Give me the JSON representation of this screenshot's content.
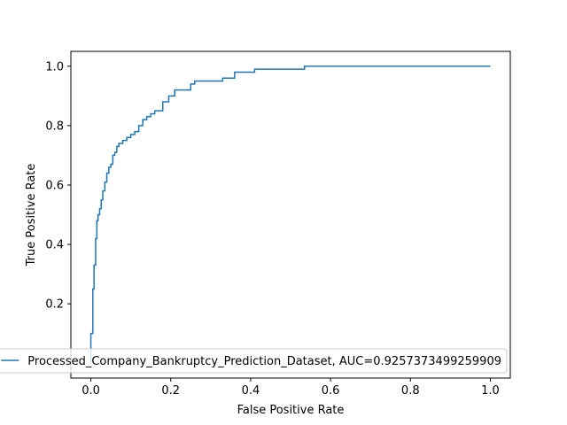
{
  "chart_data": {
    "type": "line",
    "title": "",
    "xlabel": "False Positive Rate",
    "ylabel": "True Positive Rate",
    "xlim": [
      -0.05,
      1.05
    ],
    "ylim": [
      -0.05,
      1.05
    ],
    "x_ticks": [
      "0.0",
      "0.2",
      "0.4",
      "0.6",
      "0.8",
      "1.0"
    ],
    "y_ticks": [
      "0.2",
      "0.4",
      "0.6",
      "0.8",
      "1.0"
    ],
    "grid": false,
    "legend_position": "lower-right",
    "series": [
      {
        "name": "Processed_Company_Bankruptcy_Prediction_Dataset, AUC=0.9257373499259909",
        "color": "#1f77b4",
        "x": [
          0.0,
          0.0,
          0.005,
          0.005,
          0.008,
          0.008,
          0.012,
          0.012,
          0.015,
          0.015,
          0.018,
          0.018,
          0.022,
          0.022,
          0.026,
          0.026,
          0.03,
          0.03,
          0.035,
          0.035,
          0.04,
          0.04,
          0.045,
          0.045,
          0.05,
          0.05,
          0.055,
          0.055,
          0.06,
          0.06,
          0.065,
          0.065,
          0.07,
          0.07,
          0.08,
          0.08,
          0.09,
          0.09,
          0.1,
          0.1,
          0.11,
          0.11,
          0.12,
          0.12,
          0.13,
          0.13,
          0.14,
          0.14,
          0.15,
          0.15,
          0.16,
          0.16,
          0.18,
          0.18,
          0.195,
          0.195,
          0.21,
          0.21,
          0.215,
          0.215,
          0.25,
          0.25,
          0.26,
          0.26,
          0.33,
          0.33,
          0.36,
          0.36,
          0.41,
          0.41,
          0.535,
          0.535,
          1.0
        ],
        "y": [
          0.0,
          0.1,
          0.1,
          0.25,
          0.25,
          0.33,
          0.33,
          0.42,
          0.42,
          0.48,
          0.48,
          0.5,
          0.5,
          0.52,
          0.52,
          0.55,
          0.55,
          0.58,
          0.58,
          0.61,
          0.61,
          0.64,
          0.64,
          0.66,
          0.66,
          0.67,
          0.67,
          0.7,
          0.7,
          0.71,
          0.71,
          0.73,
          0.73,
          0.74,
          0.74,
          0.75,
          0.75,
          0.76,
          0.76,
          0.77,
          0.77,
          0.78,
          0.78,
          0.8,
          0.8,
          0.82,
          0.82,
          0.83,
          0.83,
          0.84,
          0.84,
          0.85,
          0.85,
          0.88,
          0.88,
          0.9,
          0.9,
          0.92,
          0.92,
          0.92,
          0.92,
          0.94,
          0.94,
          0.95,
          0.95,
          0.96,
          0.96,
          0.98,
          0.98,
          0.99,
          0.99,
          1.0,
          1.0
        ]
      }
    ]
  }
}
